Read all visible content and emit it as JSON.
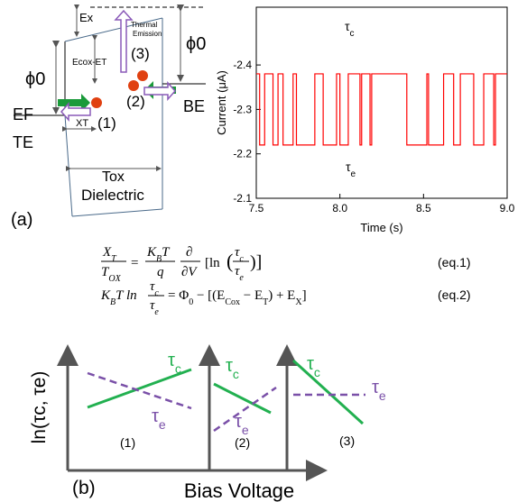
{
  "panel_a": {
    "label": "(a)",
    "ex": "Ex",
    "thermal_1": "Thermal",
    "thermal_2": "Emission",
    "phi_right": "ϕ0",
    "phi_left": "ϕ0",
    "ecox": "Ecox-ET",
    "n3": "(3)",
    "n2": "(2)",
    "n1": "(1)",
    "be": "BE",
    "ef": "EF",
    "xt": "XT",
    "te": "TE",
    "tox": "Tox",
    "dielectric": "Dielectric"
  },
  "chart_data": {
    "type": "line",
    "xlabel": "Time (s)",
    "ylabel": "Current (μA)",
    "annotations": [
      {
        "base": "τ",
        "sub": "c"
      },
      {
        "base": "τ",
        "sub": "e"
      }
    ],
    "x": [
      7.5,
      7.52,
      7.52,
      7.55,
      7.55,
      7.6,
      7.6,
      7.63,
      7.63,
      7.66,
      7.66,
      7.72,
      7.72,
      7.74,
      7.74,
      7.85,
      7.85,
      7.9,
      7.9,
      7.98,
      7.98,
      8.0,
      8.0,
      8.05,
      8.05,
      8.12,
      8.12,
      8.13,
      8.13,
      8.18,
      8.18,
      8.19,
      8.19,
      8.4,
      8.4,
      8.52,
      8.52,
      8.53,
      8.53,
      8.62,
      8.62,
      8.68,
      8.68,
      8.72,
      8.72,
      8.8,
      8.8,
      8.86,
      8.86,
      8.92,
      8.92,
      8.93,
      8.93,
      9.0
    ],
    "series": [
      {
        "color": "#ff0000",
        "values": [
          -2.38,
          -2.38,
          -2.22,
          -2.22,
          -2.38,
          -2.38,
          -2.22,
          -2.22,
          -2.38,
          -2.38,
          -2.22,
          -2.22,
          -2.38,
          -2.38,
          -2.22,
          -2.22,
          -2.38,
          -2.38,
          -2.22,
          -2.22,
          -2.38,
          -2.38,
          -2.22,
          -2.22,
          -2.38,
          -2.38,
          -2.22,
          -2.22,
          -2.38,
          -2.38,
          -2.22,
          -2.22,
          -2.38,
          -2.38,
          -2.22,
          -2.22,
          -2.38,
          -2.38,
          -2.22,
          -2.22,
          -2.38,
          -2.38,
          -2.22,
          -2.22,
          -2.38,
          -2.38,
          -2.22,
          -2.22,
          -2.38,
          -2.38,
          -2.22,
          -2.22,
          -2.38,
          -2.38
        ]
      }
    ],
    "xlim": [
      7.5,
      9.0
    ],
    "xticks": [
      {
        "value": 7.5,
        "label": "7.5"
      },
      {
        "value": 8.0,
        "label": "8.0"
      },
      {
        "value": 8.5,
        "label": "8.5"
      },
      {
        "value": 9.0,
        "label": "9.0"
      }
    ],
    "ylim": [
      -2.1,
      -2.53
    ],
    "yticks": [
      -2.4,
      -2.3,
      -2.2,
      -2.1
    ]
  },
  "equations": {
    "eq1": {
      "xn": "X",
      "xn_sub": "T",
      "td": "T",
      "td_sub": "OX",
      "eq": "=",
      "k": "K",
      "k_sub": "B",
      "t": "T",
      "q": "q",
      "dn": "∂",
      "dd": "∂V",
      "ln": "[ln",
      "open": "(",
      "tc": "τ",
      "tc_sub": "c",
      "te": "τ",
      "te_sub": "e",
      "close": ")]",
      "tag": "(eq.1)"
    },
    "eq2": {
      "k": "K",
      "k_sub": "B",
      "tln": "T ln",
      "tc": "τ",
      "tc_sub": "c",
      "te": "τ",
      "te_sub": "e",
      "rhs1": "= Φ",
      "phi_sub": "0",
      "rhs2": " − [(E",
      "cox": "Cox",
      "rhs3": " − E",
      "t_sub": "T",
      "rhs4": ") + E",
      "x_sub": "X",
      "rhs5": "]",
      "tag": "(eq.2)"
    }
  },
  "panel_b": {
    "label": "(b)",
    "xlabel": "Bias Voltage",
    "ylabel": "ln(τc, τe)",
    "panels": [
      {
        "name": "(1)",
        "tc": "τ",
        "tc_sub": "c",
        "te": "τ",
        "te_sub": "e"
      },
      {
        "name": "(2)",
        "tc": "τ",
        "tc_sub": "c",
        "te": "τ",
        "te_sub": "e"
      },
      {
        "name": "(3)",
        "tc": "τ",
        "tc_sub": "c",
        "te": "τ",
        "te_sub": "e"
      }
    ]
  }
}
